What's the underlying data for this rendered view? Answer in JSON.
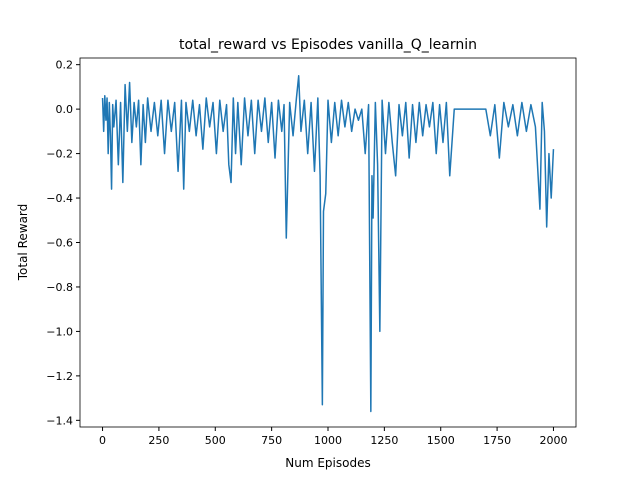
{
  "chart_data": {
    "type": "line",
    "title": "total_reward vs Episodes vanilla_Q_learnin",
    "x_label": "Num Episodes",
    "y_label": "Total Reward",
    "xlim": [
      -100,
      2100
    ],
    "ylim": [
      -1.43,
      0.23
    ],
    "xticks": [
      0,
      250,
      500,
      750,
      1000,
      1250,
      1500,
      1750,
      2000
    ],
    "yticks": [
      {
        "value": -1.4,
        "label": "−1.4"
      },
      {
        "value": -1.2,
        "label": "−1.2"
      },
      {
        "value": -1.0,
        "label": "−1.0"
      },
      {
        "value": -0.8,
        "label": "−0.8"
      },
      {
        "value": -0.6,
        "label": "−0.6"
      },
      {
        "value": -0.4,
        "label": "−0.4"
      },
      {
        "value": -0.2,
        "label": "−0.2"
      },
      {
        "value": 0,
        "label": "0.0"
      },
      0.2
    ],
    "x": [
      0,
      5,
      10,
      15,
      20,
      25,
      30,
      35,
      40,
      45,
      50,
      60,
      70,
      80,
      90,
      100,
      110,
      120,
      130,
      140,
      150,
      160,
      170,
      180,
      190,
      200,
      215,
      230,
      245,
      260,
      275,
      290,
      305,
      320,
      335,
      350,
      360,
      370,
      385,
      400,
      415,
      430,
      445,
      460,
      475,
      490,
      505,
      520,
      535,
      550,
      560,
      570,
      580,
      590,
      600,
      615,
      630,
      645,
      660,
      675,
      690,
      705,
      720,
      735,
      750,
      765,
      780,
      795,
      805,
      815,
      830,
      845,
      860,
      870,
      880,
      895,
      910,
      925,
      940,
      955,
      965,
      975,
      980,
      990,
      1000,
      1015,
      1030,
      1045,
      1060,
      1075,
      1090,
      1105,
      1120,
      1135,
      1150,
      1165,
      1180,
      1190,
      1195,
      1200,
      1210,
      1220,
      1230,
      1240,
      1255,
      1270,
      1285,
      1300,
      1315,
      1330,
      1345,
      1360,
      1375,
      1390,
      1405,
      1420,
      1435,
      1450,
      1465,
      1480,
      1495,
      1510,
      1525,
      1540,
      1560,
      1600,
      1650,
      1700,
      1720,
      1740,
      1760,
      1780,
      1800,
      1820,
      1840,
      1860,
      1880,
      1900,
      1920,
      1940,
      1950,
      1960,
      1970,
      1980,
      1990,
      2000
    ],
    "series": [
      {
        "color": "#1f77b4",
        "values": [
          0.05,
          -0.1,
          0.06,
          -0.05,
          0.05,
          -0.2,
          0.03,
          -0.12,
          -0.36,
          0.02,
          -0.08,
          0.04,
          -0.25,
          0.03,
          -0.33,
          0.11,
          -0.1,
          0.12,
          -0.15,
          0.03,
          -0.08,
          0.04,
          -0.25,
          0.02,
          -0.15,
          0.05,
          -0.1,
          0.03,
          -0.12,
          0.04,
          -0.2,
          0.04,
          -0.1,
          0.03,
          -0.28,
          0.04,
          -0.36,
          0.03,
          -0.1,
          0.04,
          -0.12,
          0.02,
          -0.18,
          0.05,
          -0.08,
          0.03,
          -0.2,
          0.04,
          -0.1,
          0.02,
          -0.25,
          -0.33,
          0.05,
          -0.2,
          0.03,
          -0.25,
          0.05,
          -0.12,
          0.04,
          -0.2,
          0.04,
          -0.1,
          0.05,
          -0.15,
          0.03,
          -0.22,
          0.04,
          -0.1,
          0.02,
          -0.58,
          0.03,
          -0.12,
          0.05,
          0.15,
          -0.1,
          0.04,
          -0.2,
          0.03,
          -0.28,
          0.05,
          -0.3,
          -1.33,
          -0.46,
          -0.38,
          0.04,
          -0.15,
          0.03,
          -0.12,
          0.04,
          -0.08,
          0.03,
          -0.1,
          0.0,
          -0.05,
          0.0,
          -0.2,
          0.02,
          -1.36,
          -0.3,
          -0.49,
          0.03,
          -0.25,
          -1.0,
          0.04,
          -0.2,
          0.03,
          -0.15,
          -0.3,
          0.02,
          -0.12,
          0.03,
          -0.22,
          0.02,
          -0.15,
          0.03,
          -0.12,
          0.02,
          -0.08,
          0.03,
          -0.2,
          0.02,
          -0.15,
          0.03,
          -0.3,
          0.0,
          0.0,
          0.0,
          0.0,
          -0.12,
          0.02,
          -0.22,
          0.03,
          -0.08,
          0.02,
          -0.12,
          0.03,
          -0.1,
          0.02,
          -0.08,
          -0.45,
          0.03,
          -0.1,
          -0.53,
          -0.2,
          -0.4,
          -0.18
        ]
      }
    ]
  }
}
